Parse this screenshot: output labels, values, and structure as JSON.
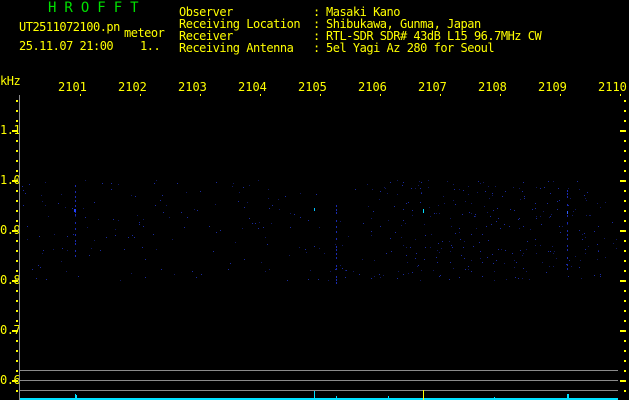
{
  "header": {
    "brand": "HROFFT",
    "filename": "UT2511072100.pn",
    "mode": "meteor",
    "datetime": "25.11.07 21:00",
    "counter": "1..",
    "fields": [
      {
        "label": "Observer",
        "value": "Masaki Kano"
      },
      {
        "label": "Receiving Location",
        "value": "Shibukawa, Gunma, Japan"
      },
      {
        "label": "Receiver",
        "value": "RTL-SDR SDR# 43dB L15 96.7MHz CW"
      },
      {
        "label": "Receiving Antenna",
        "value": "5el Yagi Az 280 for Seoul"
      }
    ]
  },
  "axes": {
    "y_unit": "kHz",
    "y_ticks": [
      "1.1",
      "1.0",
      "0.9",
      "0.8",
      "0.7",
      "0.6"
    ],
    "x_ticks": [
      "2101",
      "2102",
      "2103",
      "2104",
      "2105",
      "2106",
      "2107",
      "2108",
      "2109",
      "2110"
    ]
  },
  "colors": {
    "text": "#ffff00",
    "brand": "#00e000",
    "signal": "#2040ff",
    "spectrum": "#00e0ff",
    "grid": "#8a8a8a"
  }
}
